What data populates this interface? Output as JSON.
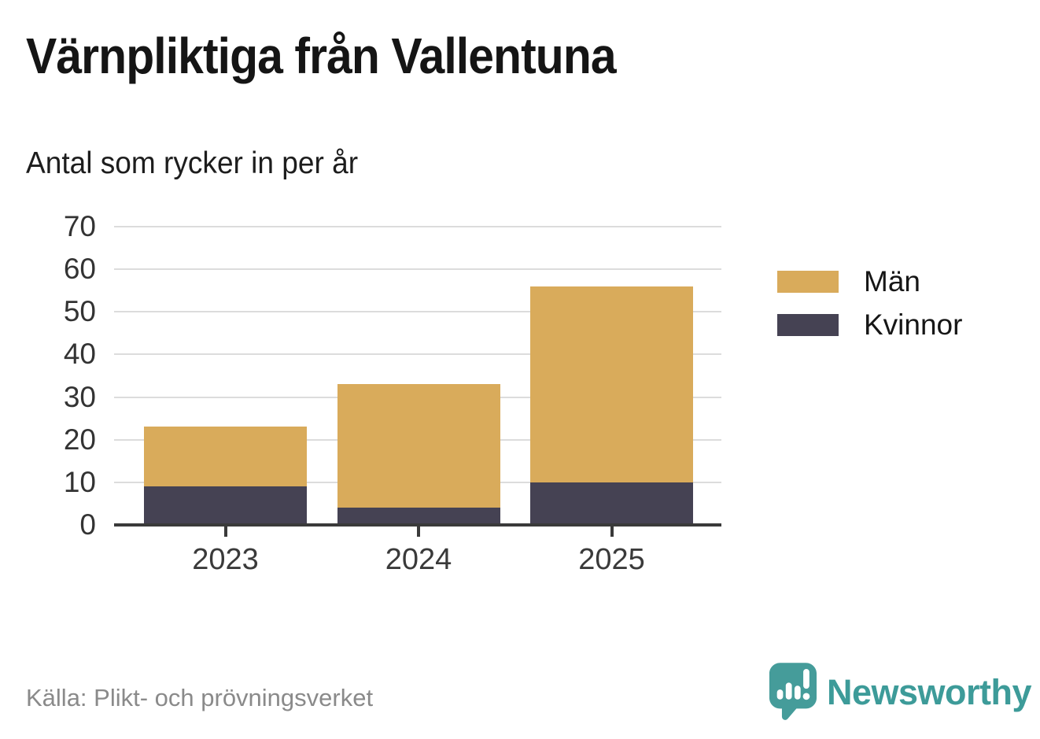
{
  "page": {
    "title": "Värnpliktiga från Vallentuna",
    "subtitle": "Antal som rycker in per år",
    "source": "Källa: Plikt- och prövningsverket",
    "brand_name": "Newsworthy"
  },
  "colors": {
    "men": "#d9ab5b",
    "women": "#454253",
    "gridline": "#dcdcdc",
    "axis": "#3a3a3a",
    "axis_text": "#3a3a3a",
    "brand_teal": "#459c9a",
    "source_gray": "#8a8a8a"
  },
  "chart_data": {
    "type": "bar",
    "stacked": true,
    "title": "Värnpliktiga från Vallentuna",
    "subtitle": "Antal som rycker in per år",
    "categories": [
      "2023",
      "2024",
      "2025"
    ],
    "series": [
      {
        "name": "Män",
        "color": "#d9ab5b",
        "values": [
          14,
          29,
          46
        ]
      },
      {
        "name": "Kvinnor",
        "color": "#454253",
        "values": [
          9,
          4,
          10
        ]
      }
    ],
    "stack_order_bottom_up": [
      "Kvinnor",
      "Män"
    ],
    "totals": [
      23,
      33,
      56
    ],
    "y_ticks": [
      0,
      10,
      20,
      30,
      40,
      50,
      60,
      70
    ],
    "ylim": [
      0,
      70
    ],
    "xlabel": "",
    "ylabel": "",
    "grid": true,
    "legend_position": "right"
  }
}
